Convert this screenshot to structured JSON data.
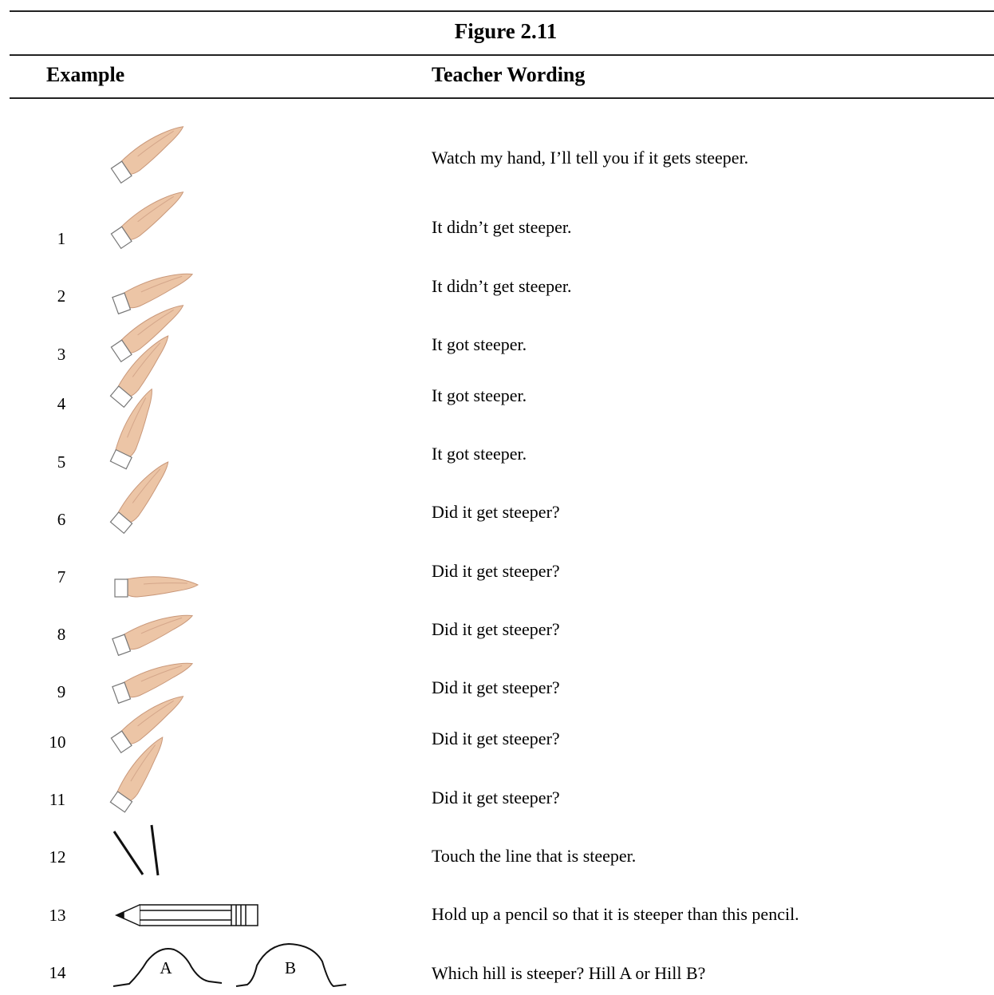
{
  "figure": {
    "title": "Figure 2.11",
    "headers": [
      "Example",
      "Teacher Wording"
    ],
    "rows": [
      {
        "wording": "Watch my hand, I’ll tell you if it gets steeper."
      },
      {
        "number": "1",
        "wording": "It didn’t get steeper."
      },
      {
        "number": "2",
        "wording": "It didn’t get steeper."
      },
      {
        "number": "3",
        "wording": "It got steeper."
      },
      {
        "number": "4",
        "wording": "It got steeper."
      },
      {
        "number": "5",
        "wording": "It got steeper."
      },
      {
        "number": "6",
        "wording": "Did it get steeper?"
      },
      {
        "number": "7",
        "wording": "Did it get steeper?"
      },
      {
        "number": "8",
        "wording": "Did it get steeper?"
      },
      {
        "number": "9",
        "wording": "Did it get steeper?"
      },
      {
        "number": "10",
        "wording": "Did it get steeper?"
      },
      {
        "number": "11",
        "wording": "Did it get steeper?"
      },
      {
        "number": "12",
        "wording": "Touch the line that is steeper."
      },
      {
        "number": "13",
        "wording": "Hold up a pencil so that it is steeper than this pencil."
      },
      {
        "number": "14",
        "wording": "Which hill is steeper? Hill A or Hill B?",
        "hill_labels": [
          "A",
          "B"
        ]
      }
    ]
  }
}
